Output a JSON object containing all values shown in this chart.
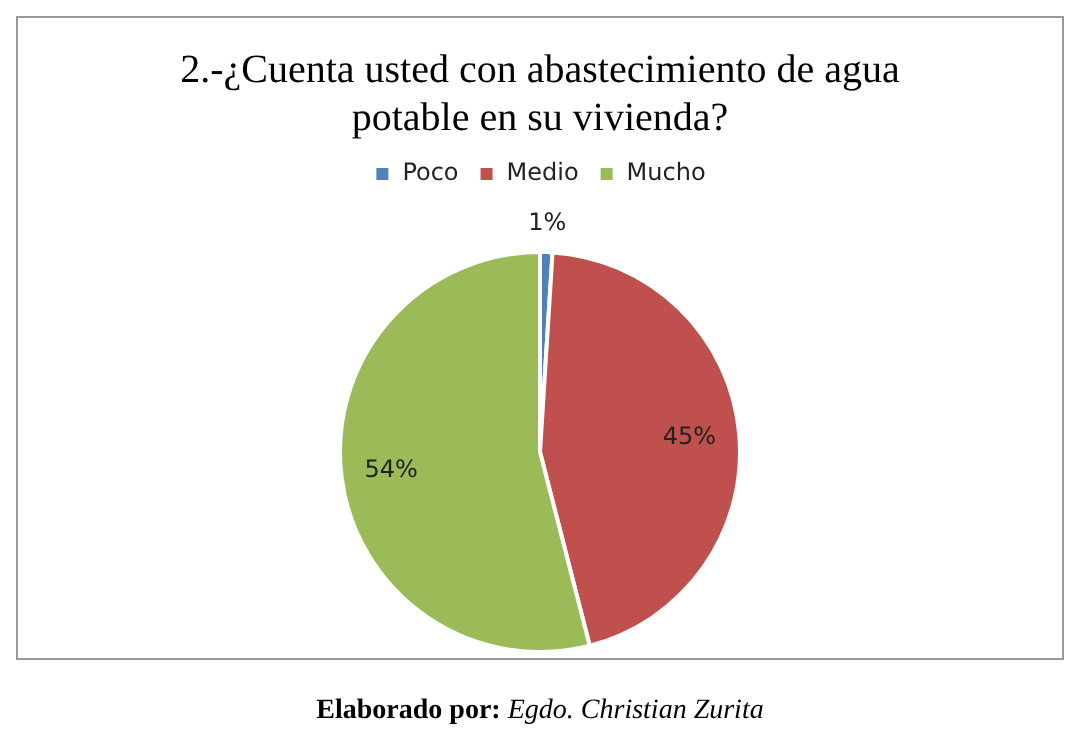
{
  "chart_data": {
    "type": "pie",
    "title": "2.-¿Cuenta usted con abastecimiento de agua potable en su vivienda?",
    "categories": [
      "Poco",
      "Medio",
      "Mucho"
    ],
    "values": [
      1,
      45,
      54
    ],
    "colors": [
      "#4f81bd",
      "#c0504d",
      "#9bbb59"
    ],
    "value_labels": [
      "1%",
      "45%",
      "54%"
    ],
    "legend": "top",
    "annotations": [
      "Elaborado por: Egdo. Christian Zurita"
    ]
  }
}
